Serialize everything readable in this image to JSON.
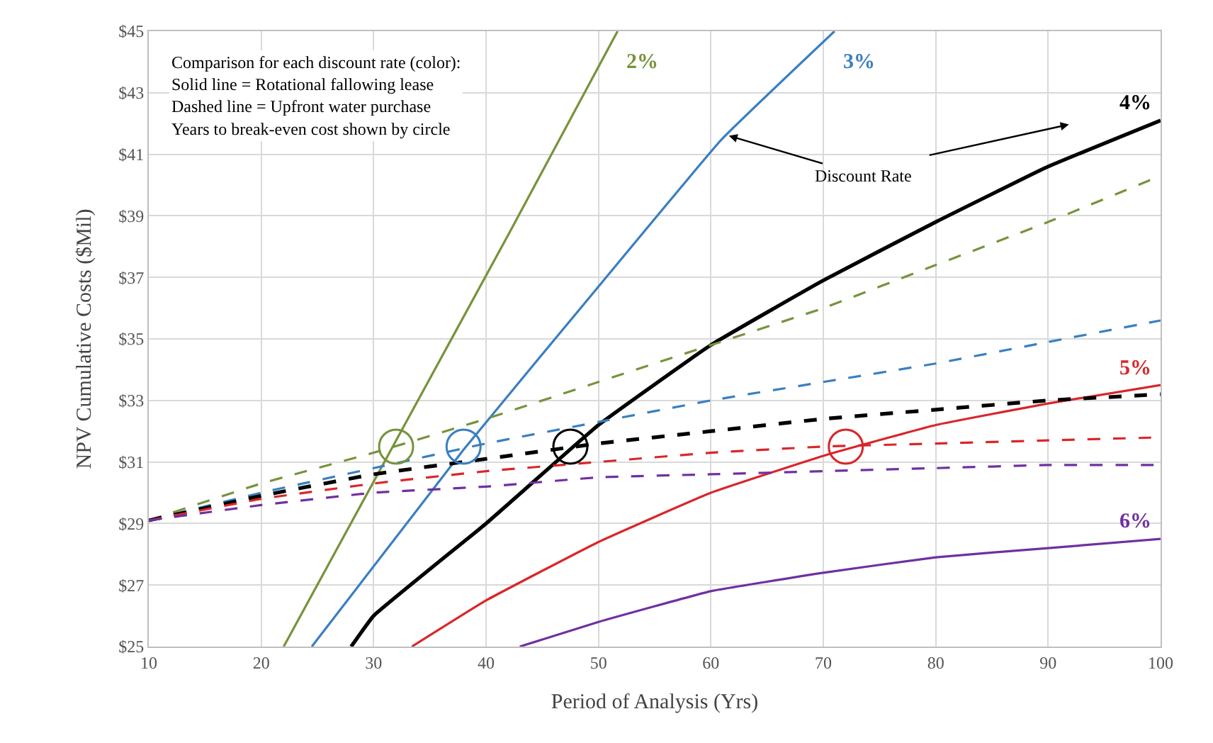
{
  "chart_data": {
    "type": "line",
    "xlabel": "Period of Analysis (Yrs)",
    "ylabel": "NPV Cumulative Costs ($Mil)",
    "xlim": [
      10,
      100
    ],
    "xticks": [
      10,
      20,
      30,
      40,
      50,
      60,
      70,
      80,
      90,
      100
    ],
    "ylim": [
      25,
      45
    ],
    "yticks": [
      {
        "value": 25,
        "label": "$25"
      },
      {
        "value": 27,
        "label": "$27"
      },
      {
        "value": 29,
        "label": "$29"
      },
      {
        "value": 31,
        "label": "$31"
      },
      {
        "value": 33,
        "label": "$33"
      },
      {
        "value": 35,
        "label": "$35"
      },
      {
        "value": 37,
        "label": "$37"
      },
      {
        "value": 39,
        "label": "$39"
      },
      {
        "value": 41,
        "label": "$41"
      },
      {
        "value": 43,
        "label": "$43"
      },
      {
        "value": 45,
        "label": "$45"
      }
    ],
    "grid": true,
    "annotations": [
      "Comparison for each discount rate (color):\nSolid line = Rotational fallowing lease\nDashed line = Upfront water purchase\nYears to break-even cost shown by circle",
      {
        "text": "Discount Rate",
        "x": 61.6,
        "y": 41.6
      }
    ],
    "series": [
      {
        "name": "2%",
        "color": "#77933c",
        "line_style": "solid",
        "x": [
          22,
          32,
          42,
          51.7
        ],
        "values": [
          25,
          31.7,
          38.4,
          45
        ]
      },
      {
        "name": "3%",
        "color": "#3a7fc1",
        "line_style": "solid",
        "x": [
          24.5,
          38,
          50,
          61,
          71
        ],
        "values": [
          25,
          31.4,
          36.7,
          41.5,
          45
        ]
      },
      {
        "name": "4%",
        "color": "#000000",
        "line_style": "solid",
        "x": [
          28,
          30,
          40,
          50,
          60,
          70,
          80,
          90,
          100
        ],
        "values": [
          25,
          26.0,
          29.0,
          32.2,
          34.8,
          36.9,
          38.8,
          40.6,
          42.1
        ]
      },
      {
        "name": "5%",
        "color": "#d9262a",
        "line_style": "solid",
        "x": [
          33.4,
          40,
          50,
          60,
          70,
          80,
          90,
          100
        ],
        "values": [
          25,
          26.5,
          28.4,
          30.0,
          31.2,
          32.2,
          32.9,
          33.5
        ]
      },
      {
        "name": "6%",
        "color": "#7030a0",
        "line_style": "solid",
        "x": [
          43,
          50,
          60,
          70,
          80,
          90,
          100
        ],
        "values": [
          25,
          25.8,
          26.8,
          27.4,
          27.9,
          28.2,
          28.5
        ]
      },
      {
        "color": "#77933c",
        "line_style": "dashed",
        "x": [
          10,
          20,
          30,
          40,
          50,
          60,
          70,
          80,
          90,
          100
        ],
        "values": [
          29.1,
          30.3,
          31.3,
          32.4,
          33.6,
          34.8,
          36.0,
          37.4,
          38.8,
          40.3
        ]
      },
      {
        "color": "#3a7fc1",
        "line_style": "dashed",
        "x": [
          10,
          20,
          30,
          40,
          50,
          60,
          70,
          80,
          90,
          100
        ],
        "values": [
          29.1,
          30.0,
          30.8,
          31.6,
          32.3,
          33.0,
          33.6,
          34.2,
          34.9,
          35.6
        ]
      },
      {
        "color": "#000000",
        "line_style": "dashed",
        "x": [
          10,
          20,
          30,
          40,
          50,
          60,
          70,
          80,
          90,
          100
        ],
        "values": [
          29.1,
          29.9,
          30.6,
          31.1,
          31.6,
          32.0,
          32.4,
          32.7,
          33.0,
          33.2
        ]
      },
      {
        "color": "#d9262a",
        "line_style": "dashed",
        "x": [
          10,
          20,
          30,
          40,
          50,
          60,
          70,
          80,
          90,
          100
        ],
        "values": [
          29.1,
          29.8,
          30.3,
          30.7,
          31.0,
          31.3,
          31.5,
          31.6,
          31.7,
          31.8
        ]
      },
      {
        "color": "#7030a0",
        "line_style": "dashed",
        "x": [
          10,
          20,
          30,
          40,
          50,
          60,
          70,
          80,
          90,
          100
        ],
        "values": [
          29.1,
          29.6,
          30.0,
          30.2,
          30.5,
          30.6,
          30.7,
          30.8,
          30.9,
          30.9
        ]
      },
      {
        "type": "scatter",
        "marker": "circle",
        "colors": [
          "#77933c",
          "#3a7fc1",
          "#000000",
          "#d9262a"
        ],
        "x": [
          32,
          38,
          47.5,
          72
        ],
        "values": [
          31.5,
          31.5,
          31.5,
          31.5
        ]
      }
    ]
  }
}
